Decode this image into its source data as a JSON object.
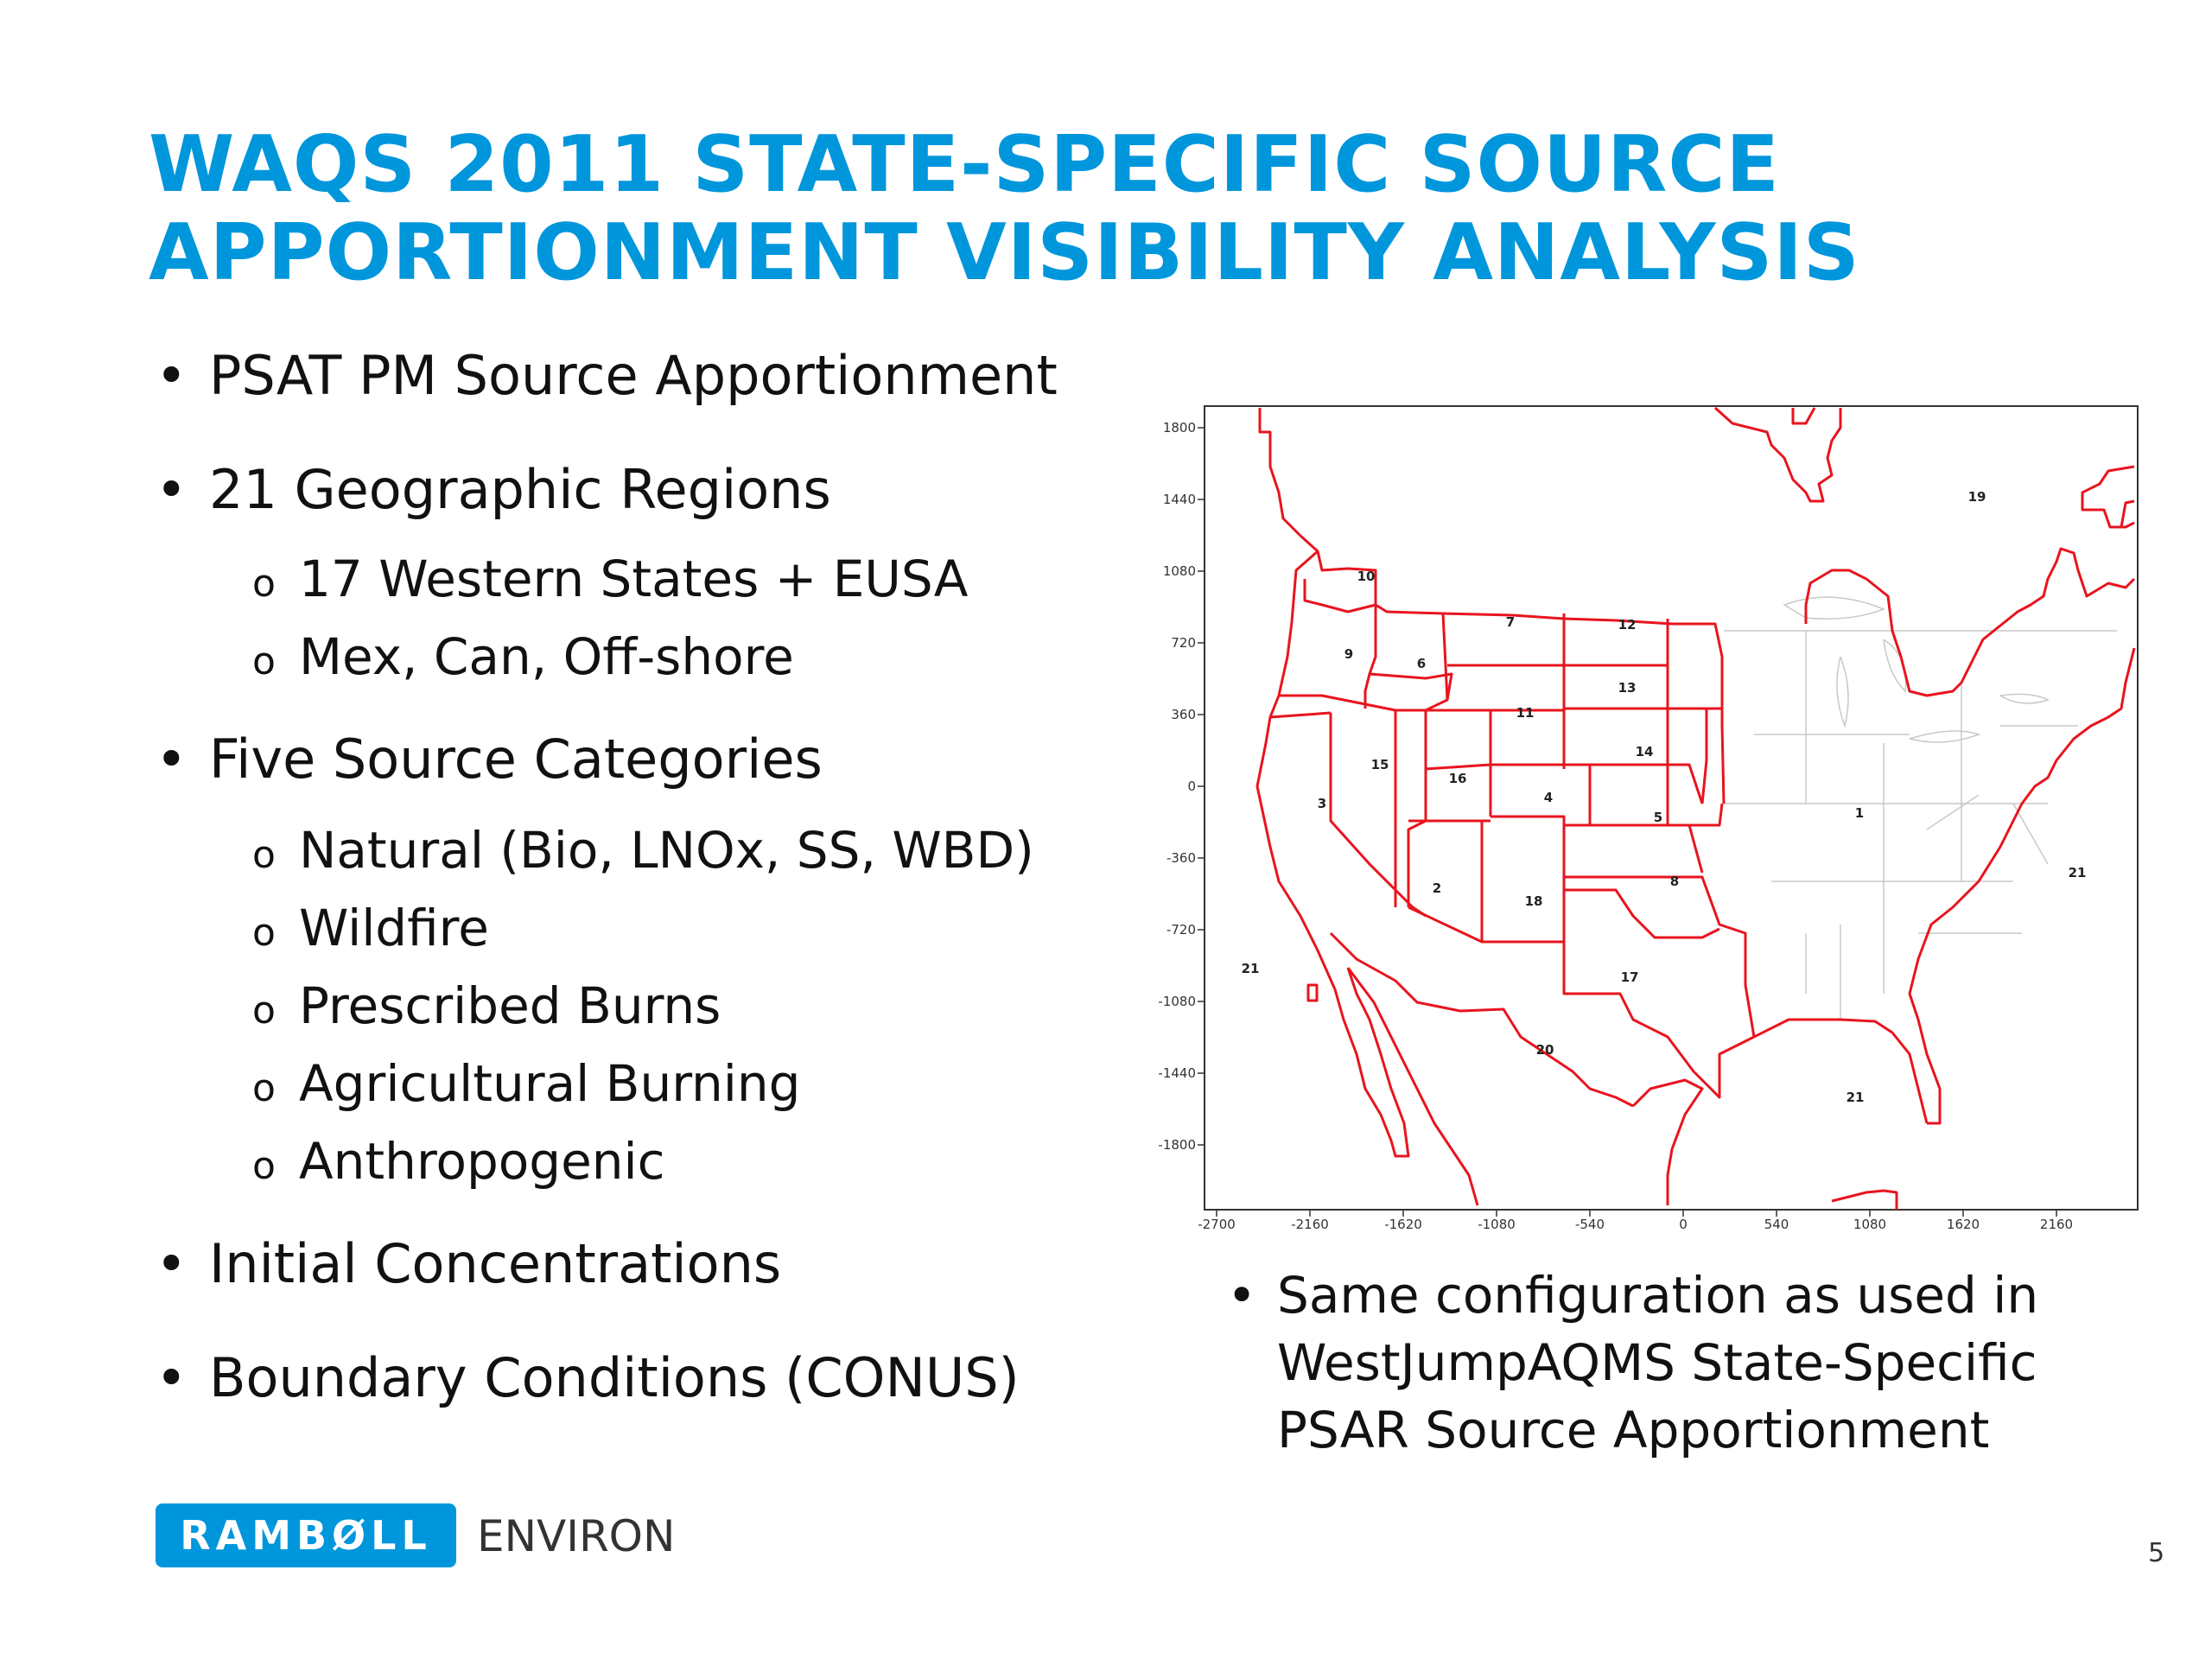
{
  "title": {
    "line1": "WAQS 2011 STATE-SPECIFIC SOURCE",
    "line2": "APPORTIONMENT VISIBILITY ANALYSIS"
  },
  "bullets": [
    {
      "text": "PSAT PM Source Apportionment"
    },
    {
      "text": "21 Geographic Regions"
    },
    {
      "text": "17 Western States + EUSA"
    },
    {
      "text": "Mex, Can, Off-shore"
    },
    {
      "text": "Five Source Categories"
    },
    {
      "text": "Natural (Bio, LNOx, SS, WBD)"
    },
    {
      "text": "Wildfire"
    },
    {
      "text": "Prescribed Burns"
    },
    {
      "text": "Agricultural Burning"
    },
    {
      "text": "Anthropogenic"
    },
    {
      "text": "Initial Concentrations"
    },
    {
      "text": "Boundary Conditions (CONUS)"
    }
  ],
  "symbols": {
    "bullet": "•",
    "sub_bullet": "o"
  },
  "map": {
    "x_ticks": [
      "-2700",
      "-2160",
      "-1620",
      "-1080",
      "-540",
      "0",
      "540",
      "1080",
      "1620",
      "2160"
    ],
    "y_ticks": [
      "1800",
      "1440",
      "1080",
      "720",
      "360",
      "0",
      "-360",
      "-720",
      "-1080",
      "-1440",
      "-1800"
    ],
    "region_labels": [
      "10",
      "7",
      "12",
      "9",
      "6",
      "13",
      "11",
      "14",
      "15",
      "16",
      "3",
      "4",
      "5",
      "1",
      "2",
      "18",
      "8",
      "21",
      "17",
      "20",
      "21",
      "19",
      "21"
    ],
    "border_color": "#e8141e",
    "state_line_color": "#c8c8c8"
  },
  "note": {
    "text": "Same configuration as used in WestJumpAQMS State-Specific PSAR Source Apportionment"
  },
  "footer": {
    "logo_text": "RAMBØLL",
    "environ": "ENVIRON",
    "page_number": "5"
  },
  "colors": {
    "title": "#0096dc",
    "logo_bg": "#0096dc"
  }
}
